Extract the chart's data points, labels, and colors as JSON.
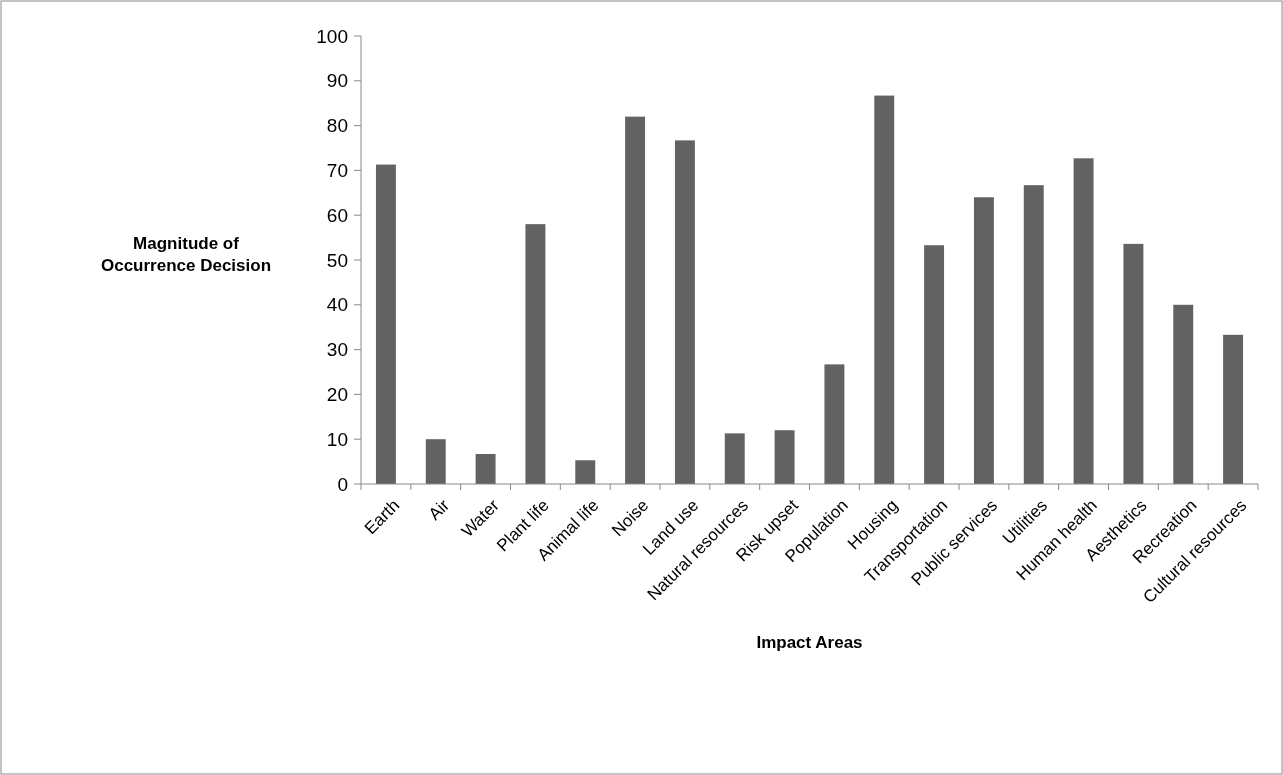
{
  "chart_data": {
    "type": "bar",
    "xlabel": "Impact Areas",
    "ylabel": "Magnitude of Occurrence Decision",
    "categories": [
      "Earth",
      "Air",
      "Water",
      "Plant life",
      "Animal life",
      "Noise",
      "Land use",
      "Natural resources",
      "Risk upset",
      "Population",
      "Housing",
      "Transportation",
      "Public services",
      "Utilities",
      "Human health",
      "Aesthetics",
      "Recreation",
      "Cultural resources"
    ],
    "values": [
      71.3,
      10,
      6.7,
      58,
      5.3,
      82,
      76.7,
      11.3,
      12,
      26.7,
      86.7,
      53.3,
      64,
      66.7,
      72.7,
      53.6,
      40,
      33.3
    ],
    "color": "#626262",
    "ylim": [
      0,
      100
    ],
    "yticks": [
      0,
      10,
      20,
      30,
      40,
      50,
      60,
      70,
      80,
      90,
      100
    ],
    "grid": false
  }
}
